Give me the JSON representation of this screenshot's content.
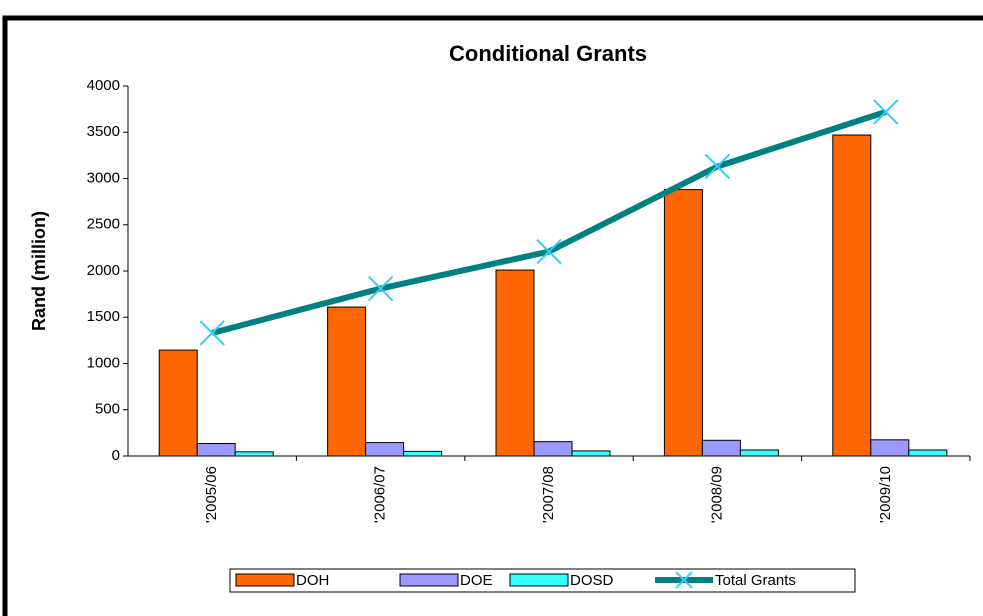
{
  "chart_data": {
    "type": "bar-line",
    "title": "Conditional Grants",
    "ylabel": "Rand (million)",
    "categories": [
      "'2005/06",
      "'2006/07",
      "'2007/08",
      "'2008/09",
      "'2009/10"
    ],
    "series": [
      {
        "name": "DOH",
        "type": "bar",
        "color": "#ff6600",
        "values": [
          1145,
          1610,
          2010,
          2880,
          3470
        ]
      },
      {
        "name": "DOE",
        "type": "bar",
        "color": "#9999ff",
        "values": [
          135,
          145,
          155,
          170,
          175
        ]
      },
      {
        "name": "DOSD",
        "type": "bar",
        "color": "#33ffff",
        "values": [
          45,
          50,
          55,
          65,
          65
        ]
      },
      {
        "name": "Total Grants",
        "type": "line",
        "color": "#008080",
        "marker_color": "#33ccff",
        "values": [
          1330,
          1810,
          2210,
          3130,
          3720
        ]
      }
    ],
    "ylim": [
      0,
      4000
    ],
    "yticks": [
      0,
      500,
      1000,
      1500,
      2000,
      2500,
      3000,
      3500,
      4000
    ]
  }
}
